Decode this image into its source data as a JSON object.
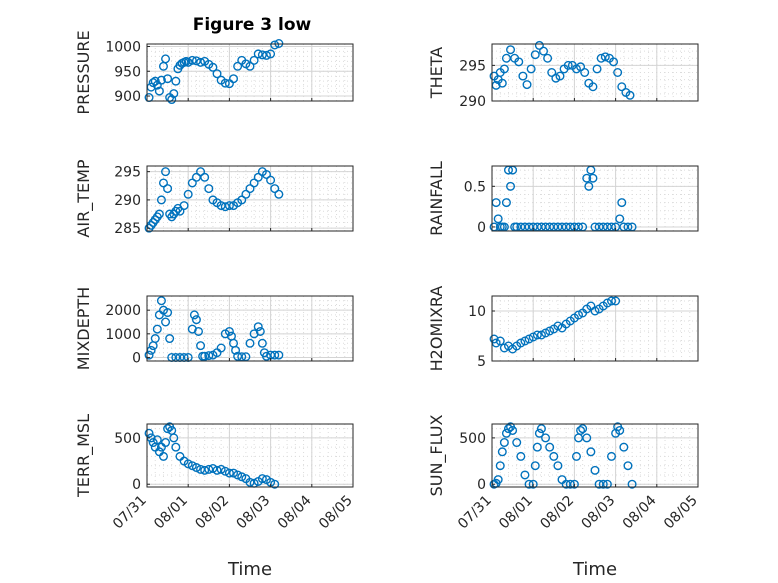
{
  "chart_data": {
    "type": "scatter",
    "title": "Figure 3 low",
    "x_tick_labels": [
      "07/31",
      "08/01",
      "08/02",
      "08/03",
      "08/04",
      "08/05"
    ],
    "x_range": [
      "07/31",
      "08/05"
    ],
    "xlabel": "Time",
    "marker_color": "#0072BD",
    "grid": true,
    "subplots": [
      {
        "id": "pressure",
        "ylabel": "PRESSURE",
        "ylim": [
          890,
          1005
        ],
        "yticks": [
          900,
          950,
          1000
        ],
        "x": [
          0.05,
          0.1,
          0.15,
          0.2,
          0.25,
          0.3,
          0.35,
          0.4,
          0.45,
          0.5,
          0.55,
          0.6,
          0.65,
          0.7,
          0.75,
          0.8,
          0.85,
          0.9,
          0.95,
          1.0,
          1.1,
          1.2,
          1.3,
          1.4,
          1.5,
          1.6,
          1.7,
          1.8,
          1.9,
          2.0,
          2.1,
          2.2,
          2.3,
          2.4,
          2.5,
          2.6,
          2.7,
          2.8,
          2.9,
          3.0,
          3.1,
          3.2,
          3.3,
          3.4,
          3.5,
          3.6,
          3.7,
          3.8,
          3.9,
          4.0,
          4.1,
          4.2
        ],
        "y": [
          897,
          918,
          927,
          930,
          922,
          910,
          932,
          960,
          975,
          935,
          897,
          893,
          905,
          930,
          955,
          962,
          966,
          968,
          970,
          968,
          972,
          971,
          968,
          970,
          964,
          958,
          945,
          932,
          926,
          925,
          935,
          960,
          972,
          965,
          960,
          972,
          985,
          983,
          982,
          985,
          1003,
          1006,
          null,
          null,
          null,
          null,
          null,
          null,
          null,
          null,
          null,
          null
        ]
      },
      {
        "id": "theta",
        "ylabel": "THETA",
        "ylim": [
          290,
          298
        ],
        "yticks": [
          290,
          295
        ],
        "x": [
          0.05,
          0.1,
          0.15,
          0.2,
          0.25,
          0.3,
          0.35,
          0.45,
          0.55,
          0.65,
          0.75,
          0.85,
          0.95,
          1.05,
          1.15,
          1.25,
          1.35,
          1.45,
          1.55,
          1.65,
          1.75,
          1.85,
          1.95,
          2.05,
          2.15,
          2.25,
          2.35,
          2.45,
          2.55,
          2.65,
          2.75,
          2.85,
          2.95,
          3.05,
          3.15,
          3.25,
          3.35,
          3.45,
          3.55,
          3.6,
          3.65
        ],
        "y": [
          293.5,
          292.2,
          293.0,
          294.0,
          292.5,
          294.5,
          296.0,
          297.2,
          296.0,
          295.5,
          293.5,
          292.3,
          294.5,
          296.5,
          297.8,
          297.0,
          296.0,
          294.0,
          293.2,
          293.5,
          294.5,
          295.0,
          295.0,
          294.5,
          294.8,
          294.0,
          292.5,
          292.0,
          294.5,
          296.0,
          296.2,
          296.0,
          295.5,
          294.0,
          292.0,
          291.2,
          290.8,
          null,
          null,
          null,
          null
        ]
      },
      {
        "id": "air_temp",
        "ylabel": "AIR_TEMP",
        "ylim": [
          284.5,
          296
        ],
        "yticks": [
          285,
          290,
          295
        ],
        "x": [
          0.05,
          0.1,
          0.15,
          0.2,
          0.25,
          0.3,
          0.35,
          0.4,
          0.45,
          0.5,
          0.55,
          0.6,
          0.65,
          0.7,
          0.75,
          0.8,
          0.9,
          1.0,
          1.1,
          1.2,
          1.3,
          1.4,
          1.5,
          1.6,
          1.7,
          1.8,
          1.9,
          2.0,
          2.1,
          2.2,
          2.3,
          2.4,
          2.5,
          2.6,
          2.7,
          2.8,
          2.9,
          3.0,
          3.1,
          3.2,
          3.3,
          3.4,
          3.5,
          3.6
        ],
        "y": [
          285,
          285.5,
          286,
          286.5,
          287,
          287.5,
          290,
          293,
          295,
          292,
          287.5,
          287,
          287.5,
          288,
          288.5,
          288,
          289,
          291,
          293,
          294,
          295,
          294,
          292,
          290,
          289.5,
          289,
          288.8,
          289,
          289,
          289.5,
          290,
          291,
          292,
          293,
          294,
          295,
          294.5,
          293.5,
          292,
          291,
          null,
          null,
          null,
          null
        ]
      },
      {
        "id": "rainfall",
        "ylabel": "RAINFALL",
        "ylim": [
          -0.05,
          0.75
        ],
        "yticks": [
          0,
          0.5
        ],
        "x": [
          0.05,
          0.1,
          0.15,
          0.2,
          0.25,
          0.3,
          0.35,
          0.4,
          0.45,
          0.5,
          0.55,
          0.6,
          0.7,
          0.8,
          0.9,
          1.0,
          1.1,
          1.2,
          1.3,
          1.4,
          1.5,
          1.6,
          1.7,
          1.8,
          1.9,
          2.0,
          2.1,
          2.2,
          2.3,
          2.35,
          2.4,
          2.45,
          2.5,
          2.6,
          2.7,
          2.8,
          2.9,
          3.0,
          3.1,
          3.15,
          3.2,
          3.3,
          3.4
        ],
        "y": [
          0,
          0.3,
          0.1,
          0,
          0,
          0,
          0.3,
          0.7,
          0.5,
          0.7,
          0,
          0,
          0,
          0,
          0,
          0,
          0,
          0,
          0,
          0,
          0,
          0,
          0,
          0,
          0,
          0,
          0,
          0,
          0.6,
          0.5,
          0.7,
          0.6,
          0,
          0,
          0,
          0,
          0,
          0,
          0.1,
          0.3,
          0,
          0,
          0
        ]
      },
      {
        "id": "mixdepth",
        "ylabel": "MIXDEPTH",
        "ylim": [
          -150,
          2600
        ],
        "yticks": [
          0,
          1000,
          2000
        ],
        "x": [
          0.05,
          0.1,
          0.15,
          0.2,
          0.25,
          0.3,
          0.35,
          0.4,
          0.45,
          0.5,
          0.55,
          0.6,
          0.7,
          0.8,
          0.9,
          1.0,
          1.1,
          1.15,
          1.2,
          1.25,
          1.3,
          1.35,
          1.4,
          1.5,
          1.6,
          1.7,
          1.8,
          1.9,
          2.0,
          2.05,
          2.1,
          2.15,
          2.2,
          2.3,
          2.4,
          2.5,
          2.6,
          2.7,
          2.75,
          2.8,
          2.85,
          2.9,
          3.0,
          3.1,
          3.2,
          3.3
        ],
        "y": [
          100,
          300,
          500,
          800,
          1200,
          1800,
          2400,
          2000,
          1500,
          1900,
          800,
          0,
          0,
          0,
          0,
          0,
          1200,
          1800,
          1600,
          1100,
          500,
          50,
          50,
          80,
          100,
          200,
          400,
          1000,
          1100,
          900,
          600,
          300,
          50,
          30,
          30,
          600,
          1000,
          1300,
          1100,
          600,
          200,
          50,
          100,
          100,
          100,
          null
        ]
      },
      {
        "id": "h2omixra",
        "ylabel": "H2OMIXRA",
        "ylim": [
          5,
          11.5
        ],
        "yticks": [
          5,
          10
        ],
        "x": [
          0.05,
          0.1,
          0.2,
          0.3,
          0.4,
          0.5,
          0.6,
          0.7,
          0.8,
          0.9,
          1.0,
          1.1,
          1.2,
          1.3,
          1.4,
          1.5,
          1.6,
          1.7,
          1.8,
          1.9,
          2.0,
          2.1,
          2.2,
          2.3,
          2.4,
          2.5,
          2.6,
          2.7,
          2.8,
          2.9,
          3.0,
          3.1,
          3.2,
          3.3,
          3.4,
          3.5,
          3.6
        ],
        "y": [
          7.2,
          6.8,
          7.0,
          6.3,
          6.5,
          6.2,
          6.5,
          6.8,
          7.0,
          7.2,
          7.4,
          7.6,
          7.6,
          7.8,
          8.0,
          8.2,
          8.5,
          8.3,
          8.7,
          9.0,
          9.3,
          9.6,
          9.8,
          10.2,
          10.5,
          10.0,
          10.2,
          10.5,
          10.8,
          11.0,
          11.0,
          null,
          null,
          null,
          null,
          null,
          null
        ]
      },
      {
        "id": "terr_msl",
        "ylabel": "TERR_MSL",
        "ylim": [
          -30,
          650
        ],
        "yticks": [
          0,
          500
        ],
        "x": [
          0.05,
          0.1,
          0.15,
          0.2,
          0.25,
          0.3,
          0.35,
          0.4,
          0.45,
          0.5,
          0.55,
          0.6,
          0.65,
          0.7,
          0.8,
          0.9,
          1.0,
          1.1,
          1.2,
          1.3,
          1.4,
          1.5,
          1.6,
          1.7,
          1.8,
          1.9,
          2.0,
          2.1,
          2.2,
          2.3,
          2.4,
          2.5,
          2.6,
          2.7,
          2.8,
          2.9,
          3.0,
          3.1,
          3.2,
          3.3,
          3.4,
          3.5,
          3.6
        ],
        "y": [
          550,
          500,
          450,
          400,
          480,
          350,
          400,
          300,
          450,
          600,
          620,
          580,
          500,
          400,
          300,
          250,
          220,
          200,
          180,
          160,
          150,
          160,
          170,
          150,
          160,
          140,
          120,
          120,
          100,
          80,
          60,
          20,
          10,
          30,
          60,
          50,
          20,
          0,
          null,
          null,
          null,
          null,
          null
        ]
      },
      {
        "id": "sun_flux",
        "ylabel": "SUN_FLUX",
        "ylim": [
          -30,
          650
        ],
        "yticks": [
          0,
          500
        ],
        "x": [
          0.05,
          0.1,
          0.15,
          0.2,
          0.25,
          0.3,
          0.35,
          0.4,
          0.45,
          0.5,
          0.6,
          0.7,
          0.8,
          0.9,
          1.0,
          1.05,
          1.1,
          1.15,
          1.2,
          1.3,
          1.4,
          1.5,
          1.6,
          1.7,
          1.8,
          1.9,
          2.0,
          2.05,
          2.1,
          2.15,
          2.2,
          2.3,
          2.4,
          2.5,
          2.6,
          2.7,
          2.8,
          2.9,
          3.0,
          3.05,
          3.1,
          3.2,
          3.3,
          3.4,
          3.5
        ],
        "y": [
          0,
          10,
          50,
          200,
          350,
          450,
          550,
          600,
          620,
          580,
          450,
          300,
          100,
          0,
          0,
          200,
          400,
          550,
          600,
          500,
          400,
          300,
          200,
          50,
          0,
          0,
          0,
          300,
          500,
          580,
          600,
          500,
          350,
          150,
          0,
          0,
          0,
          300,
          550,
          620,
          580,
          400,
          200,
          0,
          null
        ]
      }
    ]
  }
}
